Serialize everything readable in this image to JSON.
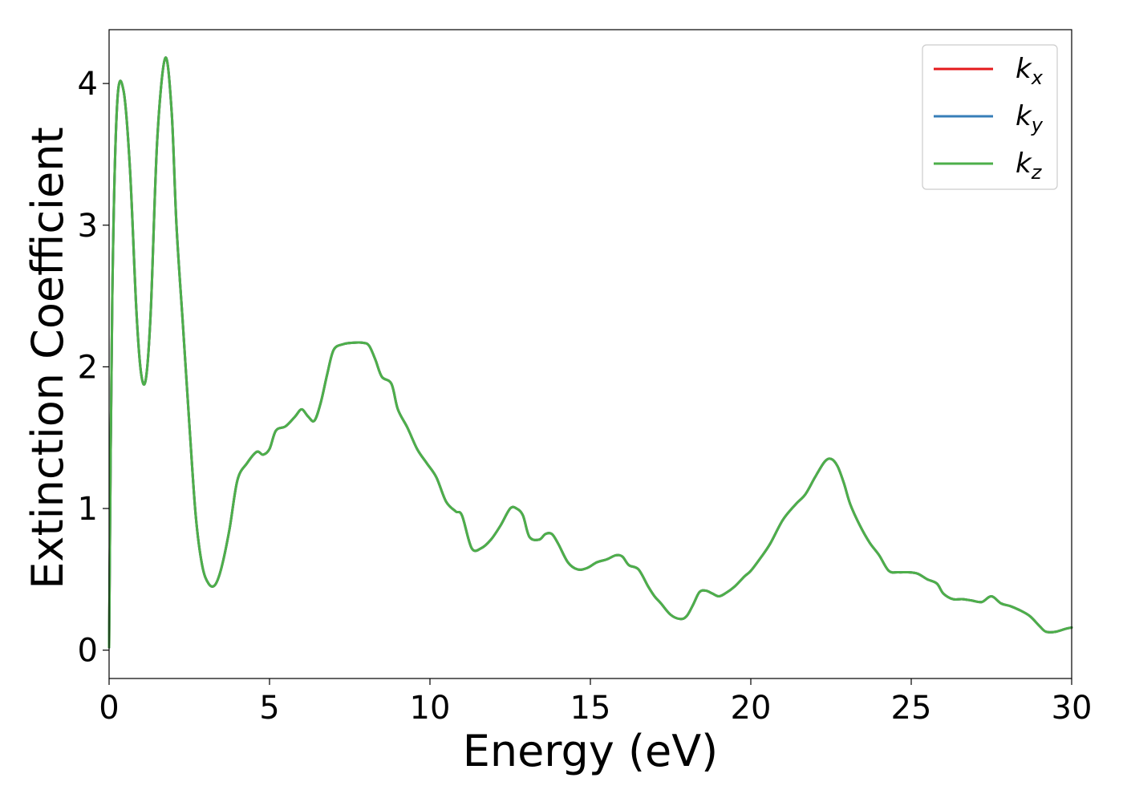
{
  "chart_data": {
    "type": "line",
    "xlabel": "Energy (eV)",
    "ylabel": "Extinction Coefficient",
    "xlim": [
      0,
      30
    ],
    "ylim": [
      -0.2,
      4.38
    ],
    "xticks": [
      0,
      5,
      10,
      15,
      20,
      25,
      30
    ],
    "yticks": [
      0,
      1,
      2,
      3,
      4
    ],
    "grid": false,
    "legend_position": "top-right",
    "series": [
      {
        "name": "k_x",
        "label_main": "k",
        "label_sub": "x",
        "color": "#e41a1c",
        "x": [
          0,
          0.1,
          0.25,
          0.45,
          0.65,
          0.85,
          1.0,
          1.15,
          1.3,
          1.5,
          1.75,
          1.95,
          2.1,
          2.3,
          2.5,
          2.7,
          2.9,
          3.1,
          3.3,
          3.5,
          3.75,
          4.0,
          4.3,
          4.6,
          4.8,
          5.0,
          5.2,
          5.5,
          5.8,
          6.0,
          6.2,
          6.4,
          6.6,
          6.8,
          7.0,
          7.3,
          7.6,
          7.9,
          8.1,
          8.3,
          8.5,
          8.8,
          9.0,
          9.3,
          9.6,
          9.9,
          10.2,
          10.5,
          10.8,
          11.0,
          11.3,
          11.6,
          11.9,
          12.2,
          12.5,
          12.7,
          12.9,
          13.1,
          13.4,
          13.6,
          13.8,
          14.0,
          14.3,
          14.6,
          14.9,
          15.2,
          15.5,
          15.8,
          16.0,
          16.2,
          16.5,
          16.8,
          17.0,
          17.2,
          17.5,
          17.8,
          18.0,
          18.2,
          18.4,
          18.6,
          18.8,
          19.0,
          19.2,
          19.5,
          19.8,
          20.0,
          20.3,
          20.6,
          21.0,
          21.4,
          21.7,
          22.0,
          22.3,
          22.5,
          22.7,
          22.9,
          23.1,
          23.4,
          23.7,
          24.0,
          24.3,
          24.6,
          24.9,
          25.2,
          25.5,
          25.8,
          26.0,
          26.3,
          26.6,
          26.9,
          27.2,
          27.5,
          27.8,
          28.1,
          28.4,
          28.7,
          29.0,
          29.2,
          29.5,
          29.8,
          30.0
        ],
        "y": [
          0.02,
          2.5,
          3.85,
          3.95,
          3.4,
          2.4,
          1.95,
          1.92,
          2.4,
          3.6,
          4.18,
          3.8,
          3.0,
          2.3,
          1.6,
          0.95,
          0.6,
          0.47,
          0.46,
          0.58,
          0.85,
          1.2,
          1.32,
          1.4,
          1.38,
          1.42,
          1.55,
          1.58,
          1.65,
          1.7,
          1.65,
          1.62,
          1.75,
          1.95,
          2.12,
          2.16,
          2.17,
          2.17,
          2.15,
          2.05,
          1.93,
          1.88,
          1.7,
          1.57,
          1.42,
          1.32,
          1.22,
          1.05,
          0.98,
          0.95,
          0.72,
          0.72,
          0.78,
          0.88,
          1.0,
          1.0,
          0.95,
          0.8,
          0.78,
          0.82,
          0.82,
          0.75,
          0.62,
          0.57,
          0.58,
          0.62,
          0.64,
          0.67,
          0.66,
          0.6,
          0.57,
          0.45,
          0.38,
          0.33,
          0.25,
          0.22,
          0.24,
          0.32,
          0.41,
          0.42,
          0.4,
          0.38,
          0.4,
          0.45,
          0.52,
          0.56,
          0.65,
          0.75,
          0.92,
          1.03,
          1.1,
          1.22,
          1.33,
          1.35,
          1.3,
          1.18,
          1.03,
          0.88,
          0.76,
          0.67,
          0.56,
          0.55,
          0.55,
          0.54,
          0.5,
          0.47,
          0.4,
          0.36,
          0.36,
          0.35,
          0.34,
          0.38,
          0.33,
          0.31,
          0.28,
          0.24,
          0.17,
          0.13,
          0.13,
          0.15,
          0.16
        ]
      },
      {
        "name": "k_y",
        "label_main": "k",
        "label_sub": "y",
        "color": "#377eb8",
        "x": [
          0,
          0.1,
          0.25,
          0.45,
          0.65,
          0.85,
          1.0,
          1.15,
          1.3,
          1.5,
          1.75,
          1.95,
          2.1,
          2.3,
          2.5,
          2.7,
          2.9,
          3.1,
          3.3,
          3.5,
          3.75,
          4.0,
          4.3,
          4.6,
          4.8,
          5.0,
          5.2,
          5.5,
          5.8,
          6.0,
          6.2,
          6.4,
          6.6,
          6.8,
          7.0,
          7.3,
          7.6,
          7.9,
          8.1,
          8.3,
          8.5,
          8.8,
          9.0,
          9.3,
          9.6,
          9.9,
          10.2,
          10.5,
          10.8,
          11.0,
          11.3,
          11.6,
          11.9,
          12.2,
          12.5,
          12.7,
          12.9,
          13.1,
          13.4,
          13.6,
          13.8,
          14.0,
          14.3,
          14.6,
          14.9,
          15.2,
          15.5,
          15.8,
          16.0,
          16.2,
          16.5,
          16.8,
          17.0,
          17.2,
          17.5,
          17.8,
          18.0,
          18.2,
          18.4,
          18.6,
          18.8,
          19.0,
          19.2,
          19.5,
          19.8,
          20.0,
          20.3,
          20.6,
          21.0,
          21.4,
          21.7,
          22.0,
          22.3,
          22.5,
          22.7,
          22.9,
          23.1,
          23.4,
          23.7,
          24.0,
          24.3,
          24.6,
          24.9,
          25.2,
          25.5,
          25.8,
          26.0,
          26.3,
          26.6,
          26.9,
          27.2,
          27.5,
          27.8,
          28.1,
          28.4,
          28.7,
          29.0,
          29.2,
          29.5,
          29.8,
          30.0
        ],
        "y": [
          0.02,
          2.5,
          3.85,
          3.95,
          3.4,
          2.4,
          1.95,
          1.92,
          2.4,
          3.6,
          4.18,
          3.8,
          3.0,
          2.3,
          1.6,
          0.95,
          0.6,
          0.47,
          0.46,
          0.58,
          0.85,
          1.2,
          1.32,
          1.4,
          1.38,
          1.42,
          1.55,
          1.58,
          1.65,
          1.7,
          1.65,
          1.62,
          1.75,
          1.95,
          2.12,
          2.16,
          2.17,
          2.17,
          2.15,
          2.05,
          1.93,
          1.88,
          1.7,
          1.57,
          1.42,
          1.32,
          1.22,
          1.05,
          0.98,
          0.95,
          0.72,
          0.72,
          0.78,
          0.88,
          1.0,
          1.0,
          0.95,
          0.8,
          0.78,
          0.82,
          0.82,
          0.75,
          0.62,
          0.57,
          0.58,
          0.62,
          0.64,
          0.67,
          0.66,
          0.6,
          0.57,
          0.45,
          0.38,
          0.33,
          0.25,
          0.22,
          0.24,
          0.32,
          0.41,
          0.42,
          0.4,
          0.38,
          0.4,
          0.45,
          0.52,
          0.56,
          0.65,
          0.75,
          0.92,
          1.03,
          1.1,
          1.22,
          1.33,
          1.35,
          1.3,
          1.18,
          1.03,
          0.88,
          0.76,
          0.67,
          0.56,
          0.55,
          0.55,
          0.54,
          0.5,
          0.47,
          0.4,
          0.36,
          0.36,
          0.35,
          0.34,
          0.38,
          0.33,
          0.31,
          0.28,
          0.24,
          0.17,
          0.13,
          0.13,
          0.15,
          0.16
        ]
      },
      {
        "name": "k_z",
        "label_main": "k",
        "label_sub": "z",
        "color": "#4daf4a",
        "x": [
          0,
          0.1,
          0.25,
          0.45,
          0.65,
          0.85,
          1.0,
          1.15,
          1.3,
          1.5,
          1.75,
          1.95,
          2.1,
          2.3,
          2.5,
          2.7,
          2.9,
          3.1,
          3.3,
          3.5,
          3.75,
          4.0,
          4.3,
          4.6,
          4.8,
          5.0,
          5.2,
          5.5,
          5.8,
          6.0,
          6.2,
          6.4,
          6.6,
          6.8,
          7.0,
          7.3,
          7.6,
          7.9,
          8.1,
          8.3,
          8.5,
          8.8,
          9.0,
          9.3,
          9.6,
          9.9,
          10.2,
          10.5,
          10.8,
          11.0,
          11.3,
          11.6,
          11.9,
          12.2,
          12.5,
          12.7,
          12.9,
          13.1,
          13.4,
          13.6,
          13.8,
          14.0,
          14.3,
          14.6,
          14.9,
          15.2,
          15.5,
          15.8,
          16.0,
          16.2,
          16.5,
          16.8,
          17.0,
          17.2,
          17.5,
          17.8,
          18.0,
          18.2,
          18.4,
          18.6,
          18.8,
          19.0,
          19.2,
          19.5,
          19.8,
          20.0,
          20.3,
          20.6,
          21.0,
          21.4,
          21.7,
          22.0,
          22.3,
          22.5,
          22.7,
          22.9,
          23.1,
          23.4,
          23.7,
          24.0,
          24.3,
          24.6,
          24.9,
          25.2,
          25.5,
          25.8,
          26.0,
          26.3,
          26.6,
          26.9,
          27.2,
          27.5,
          27.8,
          28.1,
          28.4,
          28.7,
          29.0,
          29.2,
          29.5,
          29.8,
          30.0
        ],
        "y": [
          0.02,
          2.5,
          3.85,
          3.95,
          3.4,
          2.4,
          1.95,
          1.92,
          2.4,
          3.6,
          4.18,
          3.8,
          3.0,
          2.3,
          1.6,
          0.95,
          0.6,
          0.47,
          0.46,
          0.58,
          0.85,
          1.2,
          1.32,
          1.4,
          1.38,
          1.42,
          1.55,
          1.58,
          1.65,
          1.7,
          1.65,
          1.62,
          1.75,
          1.95,
          2.12,
          2.16,
          2.17,
          2.17,
          2.15,
          2.05,
          1.93,
          1.88,
          1.7,
          1.57,
          1.42,
          1.32,
          1.22,
          1.05,
          0.98,
          0.95,
          0.72,
          0.72,
          0.78,
          0.88,
          1.0,
          1.0,
          0.95,
          0.8,
          0.78,
          0.82,
          0.82,
          0.75,
          0.62,
          0.57,
          0.58,
          0.62,
          0.64,
          0.67,
          0.66,
          0.6,
          0.57,
          0.45,
          0.38,
          0.33,
          0.25,
          0.22,
          0.24,
          0.32,
          0.41,
          0.42,
          0.4,
          0.38,
          0.4,
          0.45,
          0.52,
          0.56,
          0.65,
          0.75,
          0.92,
          1.03,
          1.1,
          1.22,
          1.33,
          1.35,
          1.3,
          1.18,
          1.03,
          0.88,
          0.76,
          0.67,
          0.56,
          0.55,
          0.55,
          0.54,
          0.5,
          0.47,
          0.4,
          0.36,
          0.36,
          0.35,
          0.34,
          0.38,
          0.33,
          0.31,
          0.28,
          0.24,
          0.17,
          0.13,
          0.13,
          0.15,
          0.16
        ]
      }
    ]
  }
}
